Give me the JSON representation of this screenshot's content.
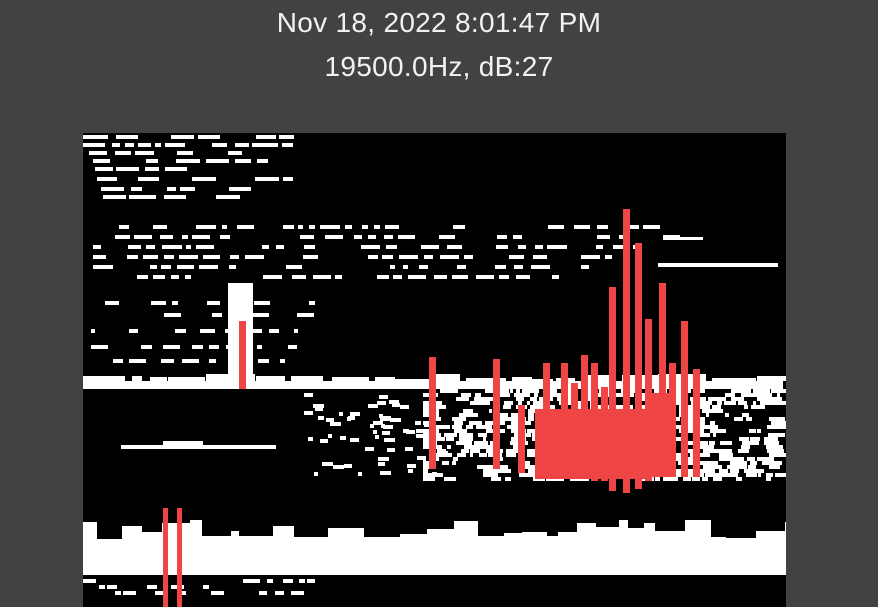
{
  "header": {
    "timestamp": "Nov 18, 2022 8:01:47 PM",
    "reading": "19500.0Hz, dB:27"
  },
  "spectrogram": {
    "background_color": "#000000",
    "signal_color": "#ffffff",
    "highlight_color": "#f04545"
  }
}
